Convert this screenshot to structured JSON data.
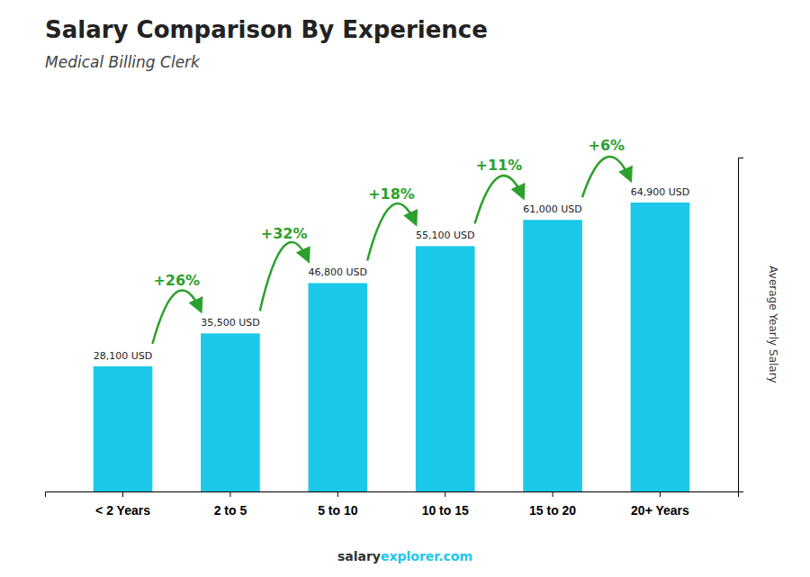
{
  "chart_data": {
    "type": "bar",
    "title": "Salary Comparison By Experience",
    "subtitle": "Medical Billing Clerk",
    "ylabel": "Average Yearly Salary",
    "categories": [
      "< 2 Years",
      "2 to 5",
      "5 to 10",
      "10 to 15",
      "15 to 20",
      "20+ Years"
    ],
    "values": [
      28100,
      35500,
      46800,
      55100,
      61000,
      64900
    ],
    "value_labels": [
      "28,100 USD",
      "35,500 USD",
      "46,800 USD",
      "55,100 USD",
      "61,000 USD",
      "64,900 USD"
    ],
    "data_labels": true,
    "annotations": [
      "+26%",
      "+32%",
      "+18%",
      "+11%",
      "+6%"
    ],
    "footer": [
      "salary",
      "explorer.com"
    ],
    "color": "#1CC8E8",
    "ylim": [
      0,
      75000
    ],
    "tick_labels": "x",
    "grid": false
  }
}
